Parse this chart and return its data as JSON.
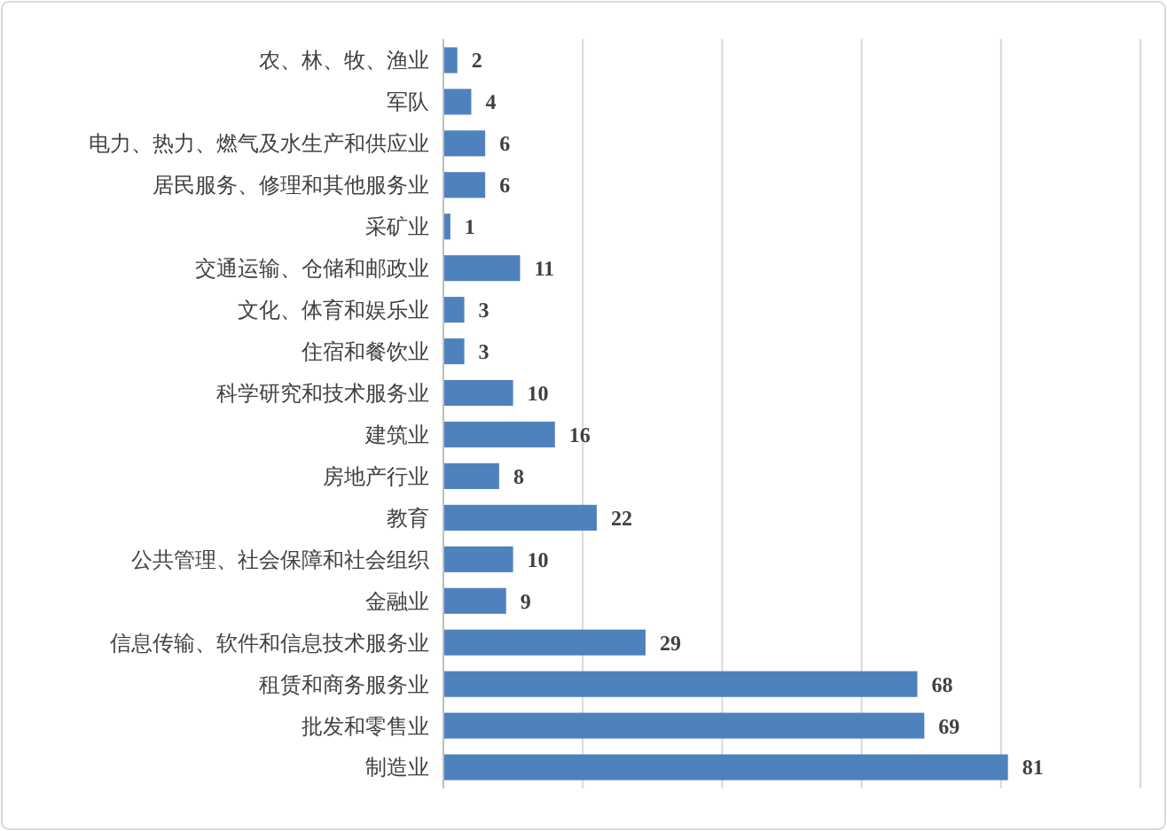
{
  "chart_data": {
    "type": "bar",
    "orientation": "horizontal",
    "categories": [
      "农、林、牧、渔业",
      "军队",
      "电力、热力、燃气及水生产和供应业",
      "居民服务、修理和其他服务业",
      "采矿业",
      "交通运输、仓储和邮政业",
      "文化、体育和娱乐业",
      "住宿和餐饮业",
      "科学研究和技术服务业",
      "建筑业",
      "房地产行业",
      "教育",
      "公共管理、社会保障和社会组织",
      "金融业",
      "信息传输、软件和信息技术服务业",
      "租赁和商务服务业",
      "批发和零售业",
      "制造业"
    ],
    "values": [
      2,
      4,
      6,
      6,
      1,
      11,
      3,
      3,
      10,
      16,
      8,
      22,
      10,
      9,
      29,
      68,
      69,
      81
    ],
    "color": "#4f81bd",
    "xlim": [
      0,
      100
    ],
    "xticks": [
      {
        "value": 0,
        "label": null
      },
      {
        "value": 20,
        "label": null
      },
      {
        "value": 40,
        "label": null
      },
      {
        "value": 60,
        "label": null
      },
      {
        "value": 80,
        "label": null
      },
      {
        "value": 100,
        "label": null
      }
    ],
    "tick_labels": "y",
    "grid": "x",
    "data_labels": true
  }
}
